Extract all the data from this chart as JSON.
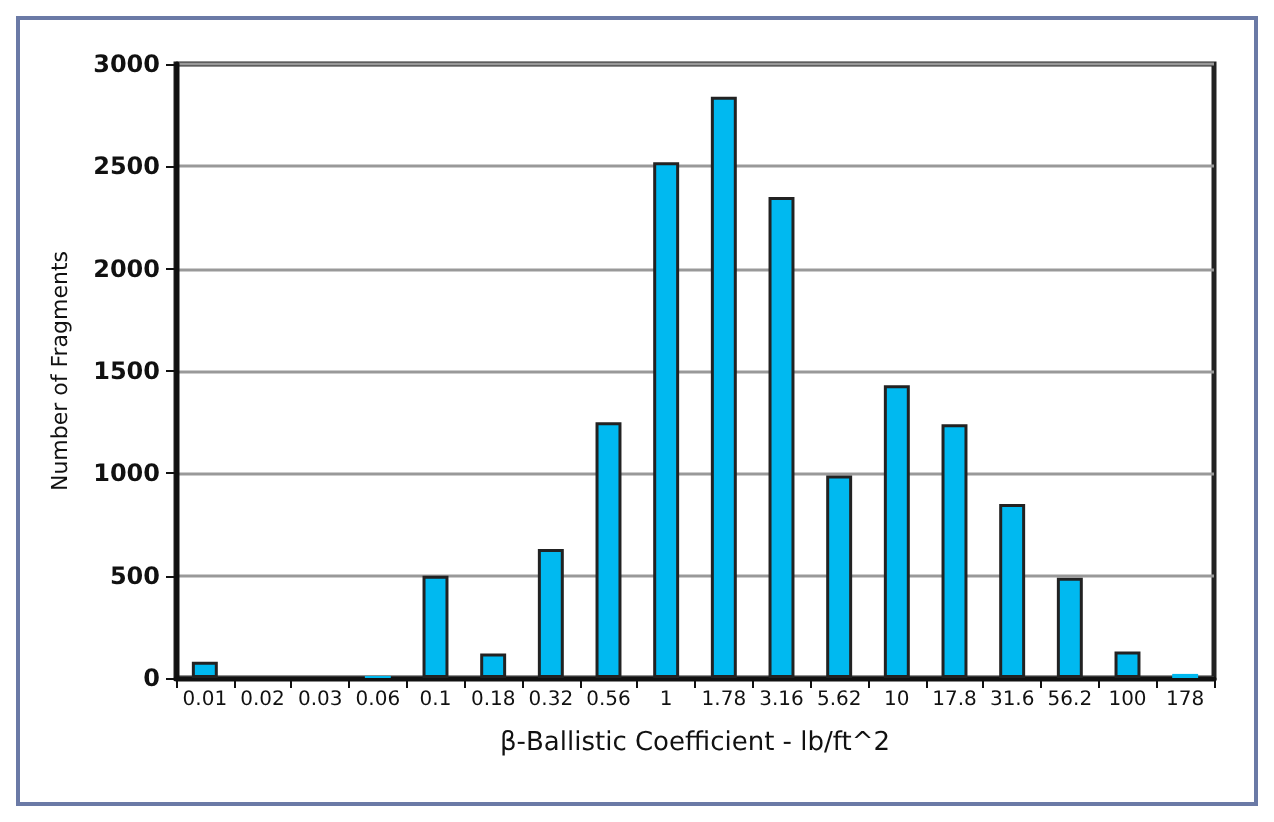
{
  "chart_data": {
    "type": "bar",
    "xlabel": "β-Ballistic Coefficient - lb/ft^2",
    "ylabel": "Number of Fragments",
    "categories": [
      "0.01",
      "0.02",
      "0.03",
      "0.06",
      "0.1",
      "0.18",
      "0.32",
      "0.56",
      "1",
      "1.78",
      "3.16",
      "5.62",
      "10",
      "17.8",
      "31.6",
      "56.2",
      "100",
      "178"
    ],
    "values": [
      80,
      0,
      0,
      10,
      500,
      120,
      630,
      1250,
      2520,
      2840,
      2350,
      990,
      1430,
      1240,
      850,
      490,
      130,
      20
    ],
    "color": "#00b9f0",
    "ylim": [
      0,
      3000
    ],
    "yticks": [
      0,
      500,
      1000,
      1500,
      2000,
      2500,
      3000
    ],
    "grid": "y"
  }
}
